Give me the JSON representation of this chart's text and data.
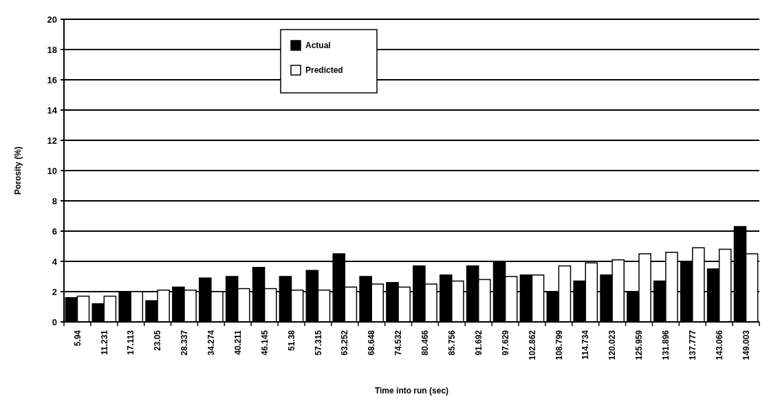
{
  "chart_data": {
    "type": "bar",
    "xlabel": "Time into run (sec)",
    "ylabel": "Porosity (%)",
    "categories": [
      "5.94",
      "11.231",
      "17.113",
      "23.05",
      "28.337",
      "34.274",
      "40.211",
      "46.145",
      "51.38",
      "57.315",
      "63.252",
      "68.648",
      "74.532",
      "80.466",
      "85.756",
      "91.692",
      "97.629",
      "102.862",
      "108.799",
      "114.734",
      "120.023",
      "125.959",
      "131.896",
      "137.777",
      "143.066",
      "149.003"
    ],
    "series": [
      {
        "name": "Actual",
        "color": "#000000",
        "values": [
          1.6,
          1.2,
          2.0,
          1.4,
          2.3,
          2.9,
          3.0,
          3.6,
          3.0,
          3.4,
          4.5,
          3.0,
          2.6,
          3.7,
          3.1,
          3.7,
          4.0,
          3.1,
          2.0,
          2.7,
          3.1,
          2.0,
          2.7,
          4.0,
          3.5,
          6.3
        ]
      },
      {
        "name": "Predicted",
        "color": "#ffffff",
        "values": [
          1.7,
          1.7,
          2.0,
          2.1,
          2.1,
          2.0,
          2.2,
          2.2,
          2.1,
          2.1,
          2.3,
          2.5,
          2.3,
          2.5,
          2.7,
          2.8,
          3.0,
          3.1,
          3.7,
          3.9,
          4.1,
          4.5,
          4.6,
          4.9,
          4.8,
          4.5
        ]
      }
    ],
    "ylim": [
      0,
      20
    ],
    "yticks": [
      0,
      2,
      4,
      6,
      8,
      10,
      12,
      14,
      16,
      18,
      20
    ],
    "grid": "y",
    "legend": "top"
  }
}
